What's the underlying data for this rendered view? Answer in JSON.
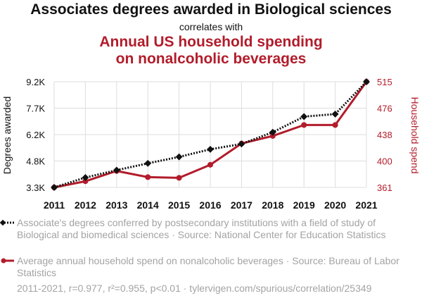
{
  "title": "Associates degrees awarded in Biological sciences",
  "subtitle": "correlates with",
  "secondary_title_line1": "Annual US household spending",
  "secondary_title_line2": "on nonalcoholic beverages",
  "colors": {
    "primary": "#111111",
    "secondary": "#b21c2b",
    "grid": "#dddddd",
    "muted": "#a3a3a3"
  },
  "legend": {
    "series1": "Associate's degrees conferred by postsecondary institutions with a field of study of Biological and biomedical sciences · Source: National Center for Education Statistics",
    "series2": "Average annual household spend on nonalcoholic beverages · Source: Bureau of Labor Statistics"
  },
  "footer": "2011-2021, r=0.977, r²=0.955, p<0.01 · tylervigen.com/spurious/correlation/25349",
  "chart_data": {
    "type": "line",
    "x": [
      2011,
      2012,
      2013,
      2014,
      2015,
      2016,
      2017,
      2018,
      2019,
      2020,
      2021
    ],
    "y_left_label": "Degrees awarded",
    "y_right_label": "Household spend",
    "y_left_ticks": [
      "3.3K",
      "4.8K",
      "6.2K",
      "7.7K",
      "9.2K"
    ],
    "y_left_tick_values": [
      3300,
      4770,
      6240,
      7710,
      9180
    ],
    "y_right_ticks": [
      "361",
      "400",
      "438",
      "476",
      "515"
    ],
    "y_right_tick_values": [
      361,
      399.5,
      438,
      476.5,
      515
    ],
    "series": [
      {
        "name": "Associate's degrees conferred (Biological and biomedical sciences)",
        "axis": "left",
        "style": "dotted-diamond",
        "values": [
          3300,
          3850,
          4260,
          4640,
          5000,
          5420,
          5720,
          6370,
          7240,
          7380,
          9180
        ]
      },
      {
        "name": "Average annual household spend on nonalcoholic beverages",
        "axis": "right",
        "style": "solid-circle",
        "values": [
          361,
          370,
          385,
          376,
          375,
          394,
          425,
          436,
          452,
          452,
          515
        ]
      }
    ]
  }
}
